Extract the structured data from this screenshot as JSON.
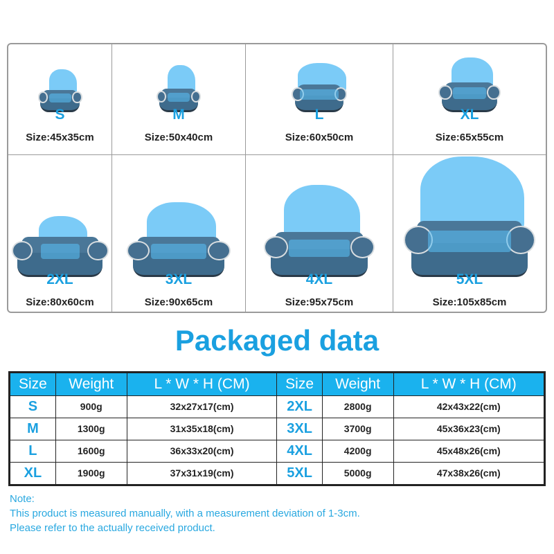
{
  "sizes": [
    {
      "label": "S",
      "size": "Size:45x35cm"
    },
    {
      "label": "M",
      "size": "Size:50x40cm"
    },
    {
      "label": "L",
      "size": "Size:60x50cm"
    },
    {
      "label": "XL",
      "size": "Size:65x55cm"
    },
    {
      "label": "2XL",
      "size": "Size:80x60cm"
    },
    {
      "label": "3XL",
      "size": "Size:90x65cm"
    },
    {
      "label": "4XL",
      "size": "Size:95x75cm"
    },
    {
      "label": "5XL",
      "size": "Size:105x85cm"
    }
  ],
  "title": "Packaged data",
  "table": {
    "headers": [
      "Size",
      "Weight",
      "L * W * H (CM)",
      "Size",
      "Weight",
      "L * W * H (CM)"
    ],
    "rows": [
      [
        "S",
        "900g",
        "32x27x17(cm)",
        "2XL",
        "2800g",
        "42x43x22(cm)"
      ],
      [
        "M",
        "1300g",
        "31x35x18(cm)",
        "3XL",
        "3700g",
        "45x36x23(cm)"
      ],
      [
        "L",
        "1600g",
        "36x33x20(cm)",
        "4XL",
        "4200g",
        "45x48x26(cm)"
      ],
      [
        "XL",
        "1900g",
        "37x31x19(cm)",
        "5XL",
        "5000g",
        "47x38x26(cm)"
      ]
    ]
  },
  "note": {
    "title": "Note:",
    "line1": "This product is measured manually, with a measurement deviation of 1-3cm.",
    "line2": "Please refer to the actually received product."
  },
  "colors": {
    "accent": "#1aa0e0",
    "header_bg": "#1ab2ee",
    "bed": "#3e6b8c"
  }
}
